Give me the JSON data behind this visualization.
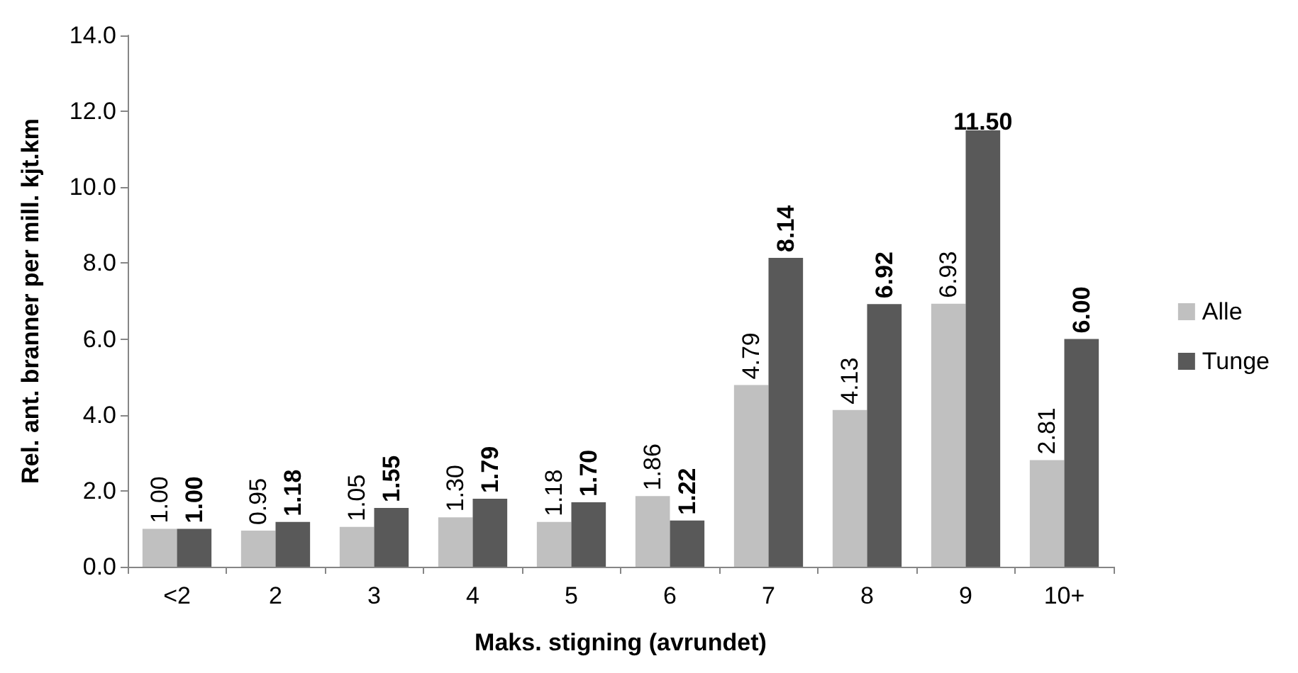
{
  "chart_data": {
    "type": "bar",
    "xlabel": "Maks. stigning (avrundet)",
    "ylabel": "Rel. ant. branner per mill. kjt.km",
    "categories": [
      "<2",
      "2",
      "3",
      "4",
      "5",
      "6",
      "7",
      "8",
      "9",
      "10+"
    ],
    "series": [
      {
        "name": "Alle",
        "color": "#c0c0c0",
        "values": [
          1.0,
          0.95,
          1.05,
          1.3,
          1.18,
          1.86,
          4.79,
          4.13,
          6.93,
          2.81
        ],
        "value_labels": [
          "1.00",
          "0.95",
          "1.05",
          "1.30",
          "1.18",
          "1.86",
          "4.79",
          "4.13",
          "6.93",
          "2.81"
        ]
      },
      {
        "name": "Tunge",
        "color": "#595959",
        "values": [
          1.0,
          1.18,
          1.55,
          1.79,
          1.7,
          1.22,
          8.14,
          6.92,
          11.5,
          6.0
        ],
        "value_labels": [
          "1.00",
          "1.18",
          "1.55",
          "1.79",
          "1.70",
          "1.22",
          "8.14",
          "6.92",
          "11.50",
          "6.00"
        ]
      }
    ],
    "ylim": [
      0,
      14
    ],
    "yticks": [
      {
        "value": 0,
        "label": "0.0"
      },
      {
        "value": 2,
        "label": "2.0"
      },
      {
        "value": 4,
        "label": "4.0"
      },
      {
        "value": 6,
        "label": "6.0"
      },
      {
        "value": 8,
        "label": "8.0"
      },
      {
        "value": 10,
        "label": "10.0"
      },
      {
        "value": 12,
        "label": "12.0"
      },
      {
        "value": 14,
        "label": "14.0"
      }
    ],
    "grid": false,
    "legend": "right"
  }
}
